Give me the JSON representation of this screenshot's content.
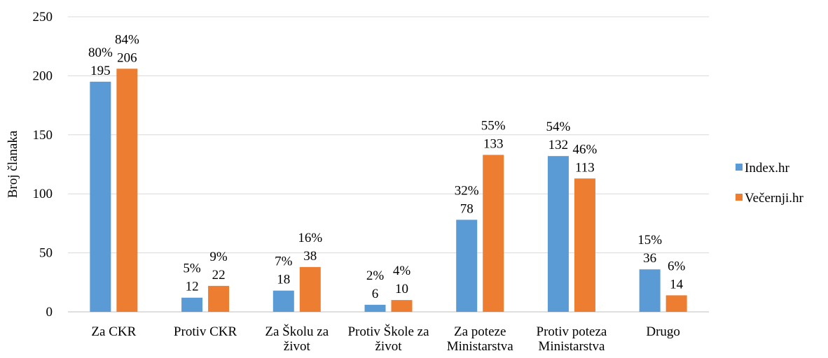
{
  "chart_data": {
    "type": "bar",
    "y_label": "Broj članaka",
    "categories": [
      "Za CKR",
      "Protiv CKR",
      "Za Školu za život",
      "Protiv Škole za život",
      "Za poteze Ministarstva",
      "Protiv poteza Ministarstva",
      "Drugo"
    ],
    "series": [
      {
        "name": "Index.hr",
        "color": "#5b9bd5",
        "values": [
          195,
          12,
          18,
          6,
          78,
          132,
          36
        ],
        "percent_labels": [
          "80%",
          "5%",
          "7%",
          "2%",
          "32%",
          "54%",
          "15%"
        ]
      },
      {
        "name": "Večernji.hr",
        "color": "#ed7d31",
        "values": [
          206,
          22,
          38,
          10,
          133,
          113,
          14
        ],
        "percent_labels": [
          "84%",
          "9%",
          "16%",
          "4%",
          "55%",
          "46%",
          "6%"
        ]
      }
    ],
    "ylim": [
      0,
      250
    ],
    "yticks": [
      0,
      50,
      100,
      150,
      200,
      250
    ],
    "grid": true,
    "legend": "right"
  }
}
